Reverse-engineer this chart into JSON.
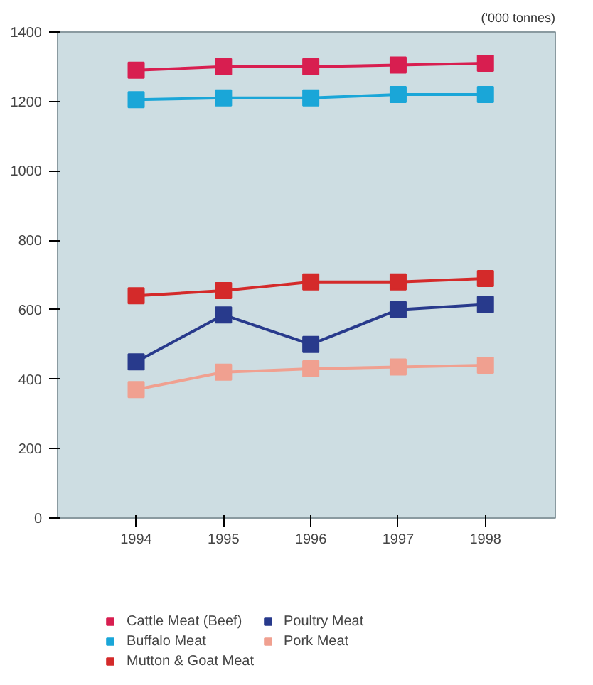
{
  "chart_data": {
    "type": "line",
    "annotations": [
      "('000 tonnes)"
    ],
    "categories": [
      "1994",
      "1995",
      "1996",
      "1997",
      "1998"
    ],
    "series": [
      {
        "name": "Cattle Meat (Beef)",
        "color": "#d81e50",
        "values": [
          1290,
          1300,
          1300,
          1305,
          1310
        ]
      },
      {
        "name": "Buffalo Meat",
        "color": "#1aa6d8",
        "values": [
          1205,
          1210,
          1210,
          1220,
          1220
        ]
      },
      {
        "name": "Mutton & Goat Meat",
        "color": "#d42a2a",
        "values": [
          640,
          655,
          680,
          680,
          690
        ]
      },
      {
        "name": "Poultry Meat",
        "color": "#283a8c",
        "values": [
          450,
          585,
          500,
          600,
          615
        ]
      },
      {
        "name": "Pork Meat",
        "color": "#f0a090",
        "values": [
          370,
          420,
          430,
          435,
          440
        ]
      }
    ],
    "ylim": [
      0,
      1400
    ],
    "yticks": [
      0,
      200,
      400,
      600,
      800,
      1000,
      1200,
      1400
    ],
    "grid": false,
    "legend": "bottom",
    "marker": "square",
    "line_style": "solid"
  }
}
